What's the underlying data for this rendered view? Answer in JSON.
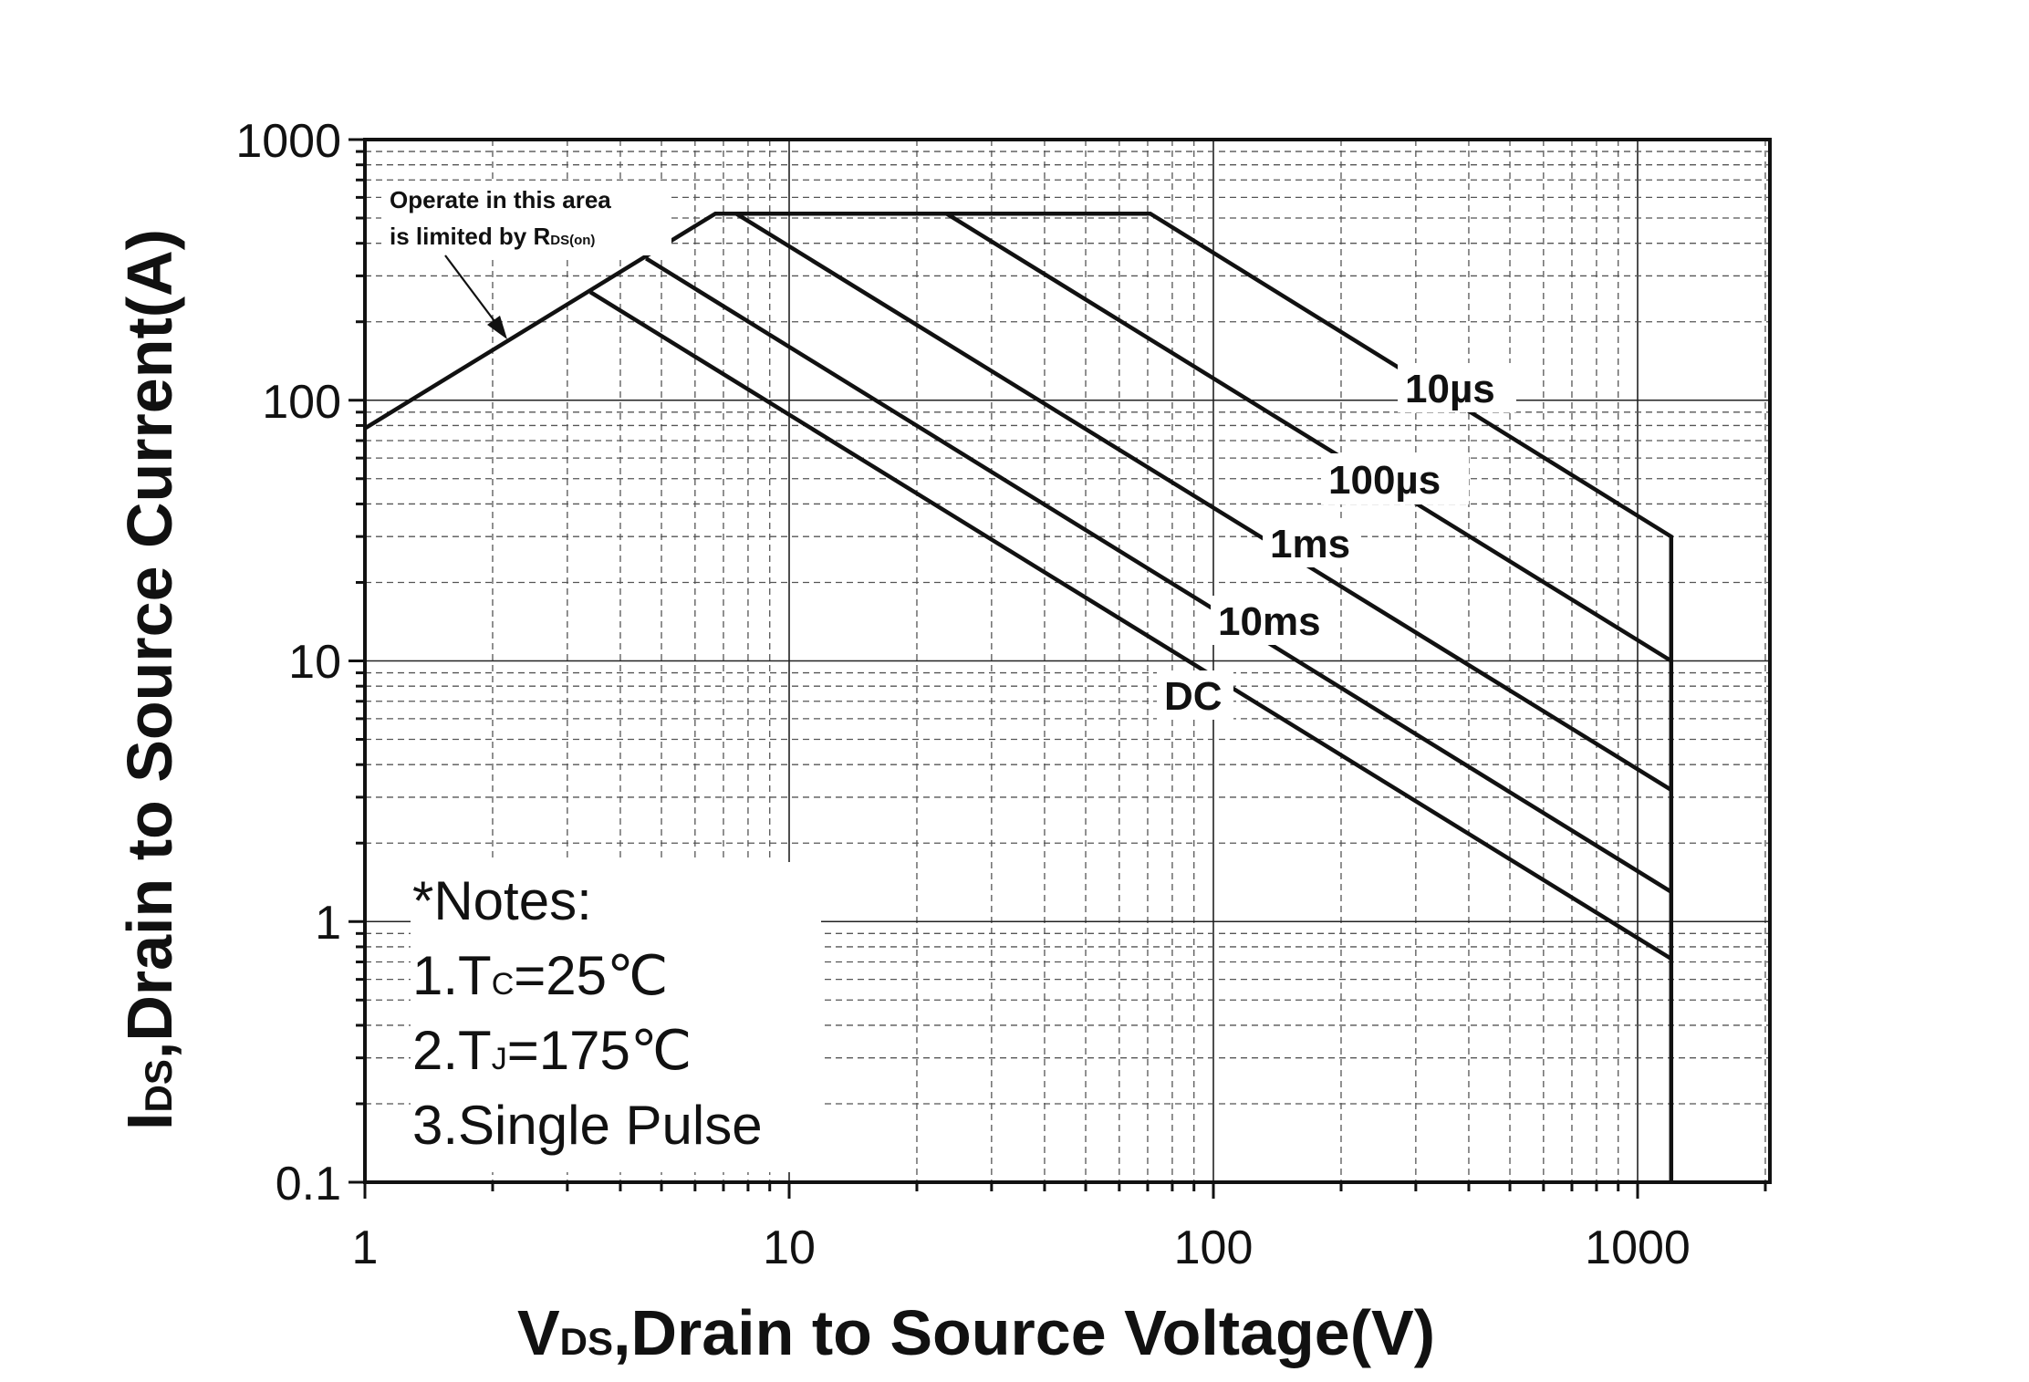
{
  "chart_data": {
    "type": "line",
    "xscale": "log",
    "yscale": "log",
    "xlim": [
      1,
      2000
    ],
    "ylim": [
      0.1,
      1000
    ],
    "grid": true,
    "xlabel": {
      "main": "V",
      "sub": "DS",
      "rest": ",Drain to Source Voltage(V)"
    },
    "ylabel": {
      "main": "I",
      "sub": "DS",
      "rest": ",Drain to Source Current(A)"
    },
    "x_ticks": [
      "1",
      "10",
      "100",
      "1000"
    ],
    "y_ticks": [
      "1000",
      "100",
      "10",
      "1",
      "0.1"
    ],
    "series": [
      {
        "name": "10µs",
        "points": [
          [
            1,
            78
          ],
          [
            6.7,
            520
          ],
          [
            71,
            520
          ],
          [
            1200,
            30
          ],
          [
            1200,
            0.1
          ]
        ]
      },
      {
        "name": "100µs",
        "points": [
          [
            23.5,
            520
          ],
          [
            1200,
            10
          ]
        ]
      },
      {
        "name": "1ms",
        "points": [
          [
            7.5,
            520
          ],
          [
            1200,
            3.2
          ]
        ]
      },
      {
        "name": "10ms",
        "points": [
          [
            4.6,
            350
          ],
          [
            1200,
            1.3
          ]
        ]
      },
      {
        "name": "DC",
        "points": [
          [
            3.4,
            260
          ],
          [
            1200,
            0.72
          ]
        ]
      }
    ],
    "annotation": {
      "line1": "Operate in this area",
      "line2_main": "is limited by R",
      "line2_sub": "DS(on)"
    },
    "notes": {
      "header": "*Notes:",
      "note1_prefix": "1.T",
      "note1_sub": "C",
      "note1_value": "=25℃",
      "note2_prefix": "2.T",
      "note2_sub": "J",
      "note2_value": "=175℃",
      "note3": "3.Single Pulse"
    }
  }
}
